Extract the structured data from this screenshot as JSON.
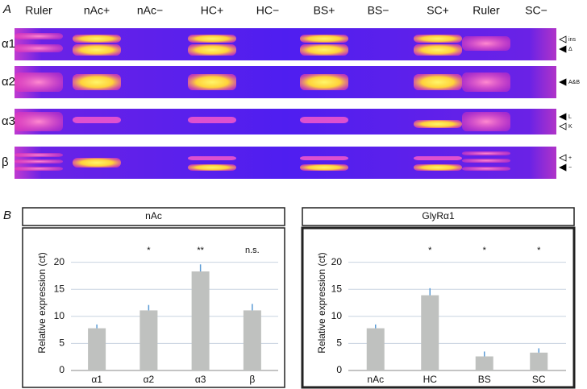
{
  "panel_a": {
    "label": "A",
    "lanes": [
      "Ruler",
      "nAc+",
      "nAc−",
      "HC+",
      "HC−",
      "BS+",
      "BS−",
      "SC+",
      "Ruler",
      "SC−"
    ],
    "rows": [
      {
        "name": "α1",
        "markers": [
          "ins",
          "Δ"
        ]
      },
      {
        "name": "α2",
        "markers": [
          "A&B"
        ]
      },
      {
        "name": "α3",
        "markers": [
          "L",
          "K"
        ]
      },
      {
        "name": "β",
        "markers": [
          "+",
          "−"
        ]
      }
    ]
  },
  "panel_b": {
    "label": "B"
  },
  "chart_data": [
    {
      "type": "bar",
      "title": "nAc",
      "y_label": "Relative expression (ct)",
      "categories": [
        "α1",
        "α2",
        "α3",
        "β"
      ],
      "values": [
        7.8,
        11.1,
        18.3,
        11.1
      ],
      "errors": [
        0.7,
        1.0,
        1.3,
        1.2
      ],
      "annotations": [
        null,
        "*",
        "**",
        "n.s."
      ],
      "color": "#bfc1bf",
      "error_color": "#5b9bd5",
      "grid": true,
      "ylim": [
        0,
        25
      ],
      "yticks": [
        0,
        5,
        10,
        15,
        20
      ]
    },
    {
      "type": "bar",
      "title": "GlyRα1",
      "y_label": "Relative expression (ct)",
      "categories": [
        "nAc",
        "HC",
        "BS",
        "SC"
      ],
      "values": [
        7.8,
        13.9,
        2.6,
        3.3
      ],
      "errors": [
        0.7,
        1.3,
        0.9,
        0.8
      ],
      "annotations": [
        null,
        "*",
        "*",
        "*"
      ],
      "color": "#bfc1bf",
      "error_color": "#5b9bd5",
      "grid": true,
      "ylim": [
        0,
        25
      ],
      "yticks": [
        0,
        5,
        10,
        15,
        20
      ]
    }
  ]
}
